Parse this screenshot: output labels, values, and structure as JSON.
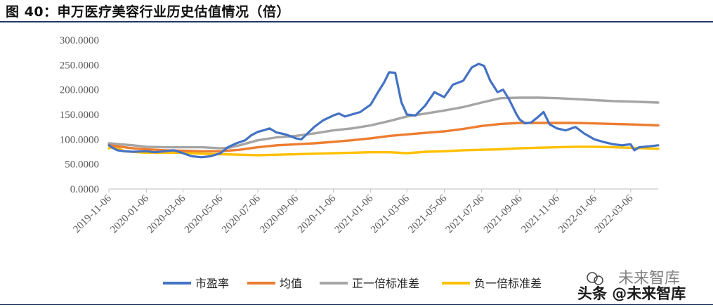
{
  "header": {
    "title": "图 40：申万医疗美容行业历史估值情况（倍）"
  },
  "chart_data": {
    "type": "line",
    "title": "",
    "xlabel": "",
    "ylabel": "",
    "ylim": [
      0,
      300
    ],
    "y_ticks": [
      "0.0000",
      "50.0000",
      "100.0000",
      "150.0000",
      "200.0000",
      "250.0000",
      "300.0000"
    ],
    "x_ticks": [
      "2019-11-06",
      "2020-01-06",
      "2020-03-06",
      "2020-05-06",
      "2020-07-06",
      "2020-09-06",
      "2020-11-06",
      "2021-01-06",
      "2021-03-06",
      "2021-05-06",
      "2021-07-06",
      "2021-09-06",
      "2021-11-06",
      "2022-01-06",
      "2022-03-06"
    ],
    "x_range": [
      "2019-11-06",
      "2022-04-20"
    ],
    "grid": false,
    "legend_position": "bottom",
    "series": [
      {
        "name": "市盈率",
        "color": "#4472c4",
        "points": [
          [
            "2019-11-06",
            88
          ],
          [
            "2019-11-12",
            83
          ],
          [
            "2019-11-20",
            78
          ],
          [
            "2019-12-01",
            76
          ],
          [
            "2019-12-15",
            75
          ],
          [
            "2020-01-06",
            76
          ],
          [
            "2020-01-20",
            74
          ],
          [
            "2020-02-05",
            76
          ],
          [
            "2020-02-20",
            78
          ],
          [
            "2020-03-06",
            72
          ],
          [
            "2020-03-20",
            66
          ],
          [
            "2020-04-05",
            64
          ],
          [
            "2020-04-20",
            66
          ],
          [
            "2020-05-06",
            72
          ],
          [
            "2020-05-18",
            84
          ],
          [
            "2020-06-01",
            92
          ],
          [
            "2020-06-15",
            98
          ],
          [
            "2020-06-25",
            108
          ],
          [
            "2020-07-06",
            115
          ],
          [
            "2020-07-15",
            118
          ],
          [
            "2020-07-25",
            122
          ],
          [
            "2020-08-05",
            114
          ],
          [
            "2020-08-20",
            110
          ],
          [
            "2020-09-06",
            102
          ],
          [
            "2020-09-15",
            100
          ],
          [
            "2020-09-25",
            112
          ],
          [
            "2020-10-06",
            125
          ],
          [
            "2020-10-20",
            138
          ],
          [
            "2020-11-06",
            148
          ],
          [
            "2020-11-15",
            152
          ],
          [
            "2020-11-25",
            146
          ],
          [
            "2020-12-06",
            150
          ],
          [
            "2020-12-20",
            155
          ],
          [
            "2021-01-06",
            170
          ],
          [
            "2021-01-18",
            195
          ],
          [
            "2021-01-28",
            215
          ],
          [
            "2021-02-05",
            235
          ],
          [
            "2021-02-15",
            234
          ],
          [
            "2021-02-25",
            175
          ],
          [
            "2021-03-06",
            150
          ],
          [
            "2021-03-20",
            148
          ],
          [
            "2021-04-05",
            168
          ],
          [
            "2021-04-20",
            195
          ],
          [
            "2021-05-06",
            185
          ],
          [
            "2021-05-20",
            210
          ],
          [
            "2021-06-06",
            218
          ],
          [
            "2021-06-20",
            245
          ],
          [
            "2021-07-01",
            252
          ],
          [
            "2021-07-10",
            248
          ],
          [
            "2021-07-20",
            218
          ],
          [
            "2021-08-01",
            195
          ],
          [
            "2021-08-10",
            200
          ],
          [
            "2021-08-20",
            180
          ],
          [
            "2021-09-01",
            150
          ],
          [
            "2021-09-06",
            140
          ],
          [
            "2021-09-15",
            132
          ],
          [
            "2021-09-25",
            134
          ],
          [
            "2021-10-06",
            145
          ],
          [
            "2021-10-15",
            155
          ],
          [
            "2021-10-25",
            130
          ],
          [
            "2021-11-06",
            122
          ],
          [
            "2021-11-20",
            118
          ],
          [
            "2021-12-06",
            125
          ],
          [
            "2021-12-20",
            112
          ],
          [
            "2022-01-06",
            100
          ],
          [
            "2022-01-20",
            95
          ],
          [
            "2022-02-06",
            90
          ],
          [
            "2022-02-20",
            88
          ],
          [
            "2022-03-06",
            90
          ],
          [
            "2022-03-12",
            78
          ],
          [
            "2022-03-20",
            84
          ],
          [
            "2022-04-06",
            86
          ],
          [
            "2022-04-20",
            88
          ]
        ]
      },
      {
        "name": "均值",
        "color": "#ed7d31",
        "points": [
          [
            "2019-11-06",
            88
          ],
          [
            "2019-12-15",
            82
          ],
          [
            "2020-01-06",
            80
          ],
          [
            "2020-02-06",
            78
          ],
          [
            "2020-03-06",
            77
          ],
          [
            "2020-04-06",
            76
          ],
          [
            "2020-05-06",
            76
          ],
          [
            "2020-06-06",
            79
          ],
          [
            "2020-07-06",
            84
          ],
          [
            "2020-08-06",
            88
          ],
          [
            "2020-09-06",
            90
          ],
          [
            "2020-10-06",
            92
          ],
          [
            "2020-11-06",
            95
          ],
          [
            "2020-12-06",
            98
          ],
          [
            "2021-01-06",
            102
          ],
          [
            "2021-02-06",
            107
          ],
          [
            "2021-03-06",
            110
          ],
          [
            "2021-04-06",
            113
          ],
          [
            "2021-05-06",
            116
          ],
          [
            "2021-06-06",
            121
          ],
          [
            "2021-07-06",
            127
          ],
          [
            "2021-08-06",
            131
          ],
          [
            "2021-09-06",
            133
          ],
          [
            "2021-10-06",
            133
          ],
          [
            "2021-11-06",
            133
          ],
          [
            "2021-12-06",
            133
          ],
          [
            "2022-01-06",
            132
          ],
          [
            "2022-02-06",
            131
          ],
          [
            "2022-03-06",
            130
          ],
          [
            "2022-04-20",
            128
          ]
        ]
      },
      {
        "name": "正一倍标准差",
        "color": "#a5a5a5",
        "points": [
          [
            "2019-11-06",
            92
          ],
          [
            "2019-12-15",
            88
          ],
          [
            "2020-01-06",
            85
          ],
          [
            "2020-02-06",
            84
          ],
          [
            "2020-03-06",
            84
          ],
          [
            "2020-04-06",
            84
          ],
          [
            "2020-05-06",
            82
          ],
          [
            "2020-05-20",
            83
          ],
          [
            "2020-06-06",
            88
          ],
          [
            "2020-07-06",
            98
          ],
          [
            "2020-08-06",
            104
          ],
          [
            "2020-09-06",
            107
          ],
          [
            "2020-10-06",
            112
          ],
          [
            "2020-11-06",
            118
          ],
          [
            "2020-12-06",
            122
          ],
          [
            "2021-01-06",
            128
          ],
          [
            "2021-02-06",
            137
          ],
          [
            "2021-03-06",
            146
          ],
          [
            "2021-04-06",
            152
          ],
          [
            "2021-05-06",
            158
          ],
          [
            "2021-06-06",
            165
          ],
          [
            "2021-07-06",
            174
          ],
          [
            "2021-08-06",
            183
          ],
          [
            "2021-09-06",
            184
          ],
          [
            "2021-10-06",
            184
          ],
          [
            "2021-11-06",
            183
          ],
          [
            "2021-12-06",
            181
          ],
          [
            "2022-01-06",
            179
          ],
          [
            "2022-02-06",
            177
          ],
          [
            "2022-03-06",
            176
          ],
          [
            "2022-04-20",
            174
          ]
        ]
      },
      {
        "name": "负一倍标准差",
        "color": "#ffc000",
        "points": [
          [
            "2019-11-06",
            82
          ],
          [
            "2019-11-15",
            86
          ],
          [
            "2019-12-01",
            76
          ],
          [
            "2020-01-06",
            73
          ],
          [
            "2020-02-06",
            73
          ],
          [
            "2020-03-06",
            73
          ],
          [
            "2020-04-06",
            71
          ],
          [
            "2020-05-06",
            70
          ],
          [
            "2020-06-06",
            69
          ],
          [
            "2020-07-06",
            68
          ],
          [
            "2020-08-06",
            69
          ],
          [
            "2020-09-06",
            70
          ],
          [
            "2020-10-06",
            71
          ],
          [
            "2020-11-06",
            72
          ],
          [
            "2020-12-06",
            73
          ],
          [
            "2021-01-06",
            74
          ],
          [
            "2021-02-06",
            74
          ],
          [
            "2021-03-06",
            72
          ],
          [
            "2021-04-06",
            75
          ],
          [
            "2021-05-06",
            76
          ],
          [
            "2021-06-06",
            78
          ],
          [
            "2021-07-06",
            79
          ],
          [
            "2021-08-06",
            80
          ],
          [
            "2021-09-06",
            82
          ],
          [
            "2021-10-06",
            83
          ],
          [
            "2021-11-06",
            84
          ],
          [
            "2021-12-06",
            85
          ],
          [
            "2022-01-06",
            85
          ],
          [
            "2022-02-06",
            84
          ],
          [
            "2022-03-06",
            83
          ],
          [
            "2022-04-20",
            81
          ]
        ]
      }
    ]
  },
  "watermark": {
    "line1": "未来智库",
    "line2": "头条 @未来智库"
  }
}
